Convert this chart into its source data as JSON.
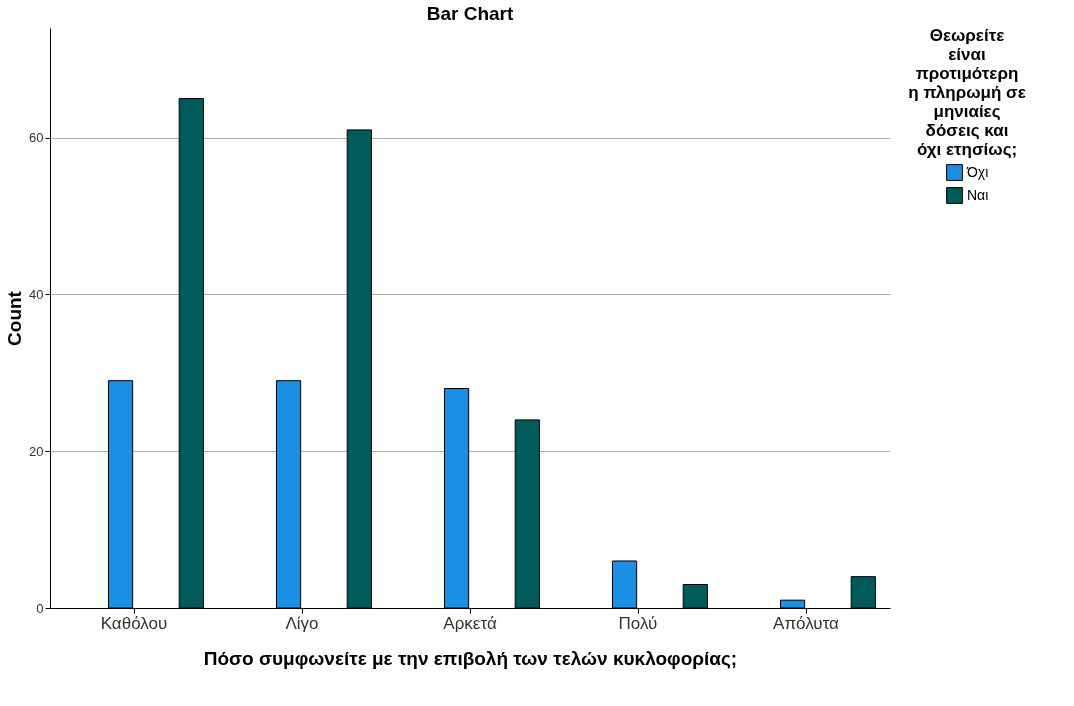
{
  "chart_data": {
    "type": "bar",
    "title": "Bar Chart",
    "xlabel": "Πόσο συμφωνείτε με την επιβολή των τελών κυκλοφορίας;",
    "ylabel": "Count",
    "legend_title": "Θεωρείτε είναι προτιμότερη η πληρωμή σε μηνιαίες δόσεις και όχι ετησίως;",
    "categories": [
      "Καθόλου",
      "Λίγο",
      "Αρκετά",
      "Πολύ",
      "Απόλυτα"
    ],
    "series": [
      {
        "name": "Όχι",
        "color": "#1a8fe3",
        "values": [
          29,
          29,
          28,
          6,
          1
        ]
      },
      {
        "name": "Ναι",
        "color": "#005a5a",
        "values": [
          65,
          61,
          24,
          3,
          4
        ]
      }
    ],
    "ylim": [
      0,
      74
    ],
    "yticks": [
      0,
      20,
      40,
      60
    ],
    "grid": "y",
    "legend": "right"
  }
}
